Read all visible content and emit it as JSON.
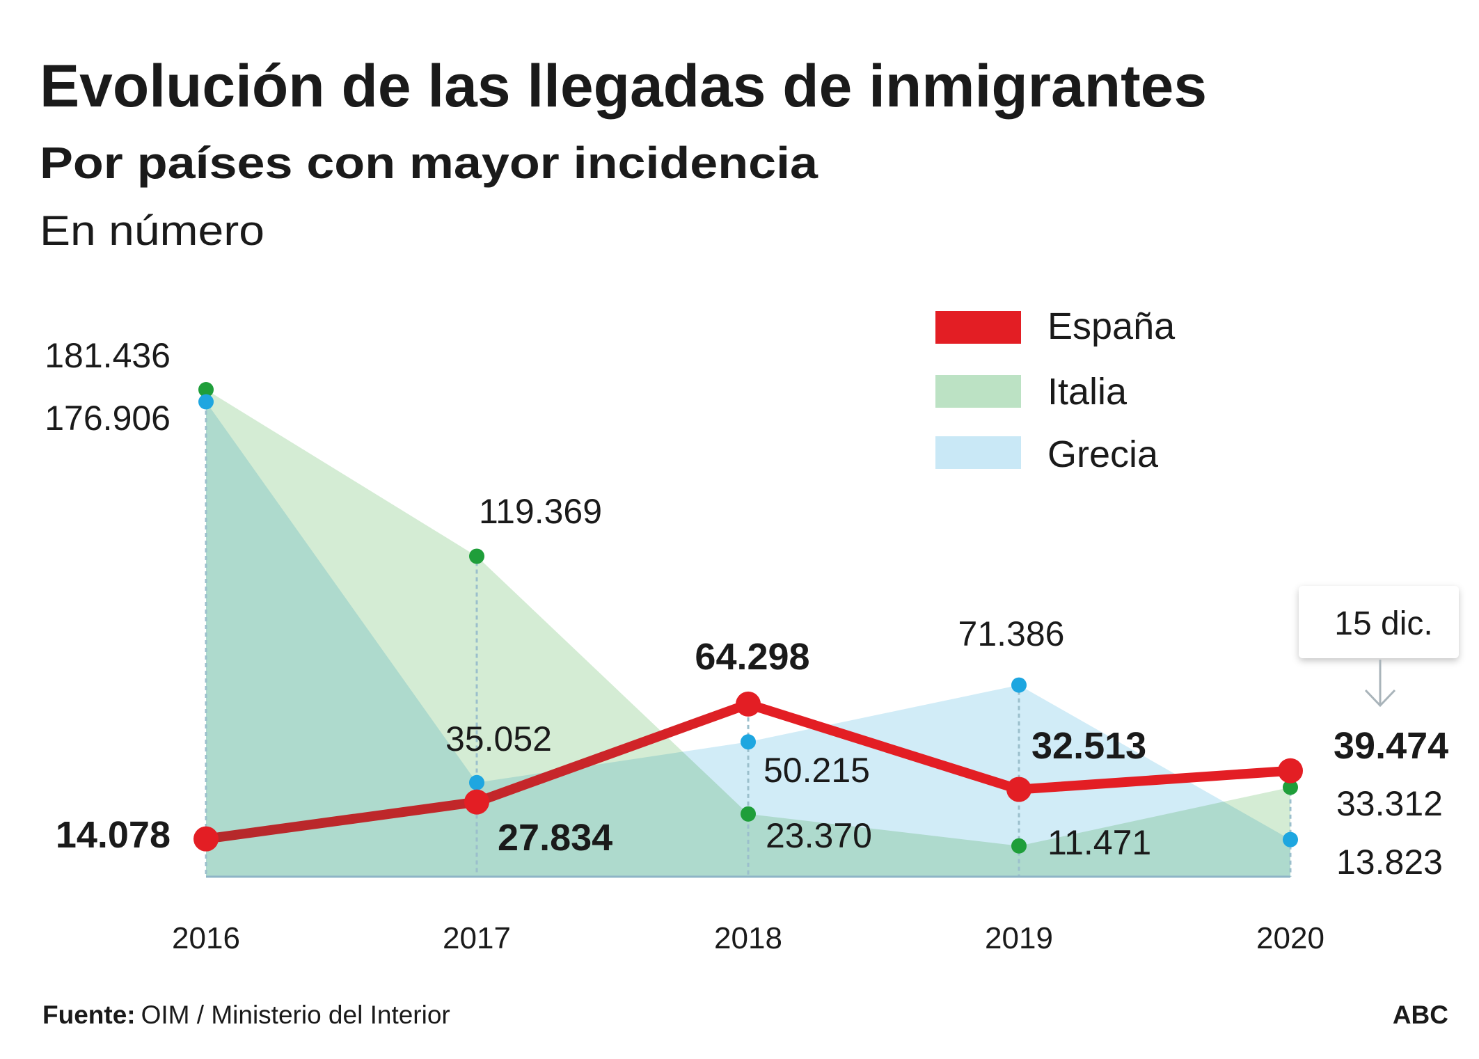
{
  "header": {
    "title": "Evolución de las llegadas de inmigrantes",
    "subtitle": "Por países con mayor incidencia",
    "unit": "En número"
  },
  "footer": {
    "source_label": "Fuente:",
    "source_text": "OIM / Ministerio del Interior",
    "brand": "ABC"
  },
  "annotation": {
    "text": "15 dic.",
    "icon": "arrow-down-icon"
  },
  "chart_data": {
    "type": "area",
    "title": "Evolución de las llegadas de inmigrantes",
    "subtitle": "Por países con mayor incidencia",
    "ylabel": "En número",
    "categories": [
      "2016",
      "2017",
      "2018",
      "2019",
      "2020"
    ],
    "ylim": [
      0,
      181436
    ],
    "grid": false,
    "legend_position": "top-right",
    "series": [
      {
        "name": "España",
        "render": "line",
        "color": "#e31e24",
        "values": [
          14078,
          27834,
          64298,
          32513,
          39474
        ],
        "labels": [
          "14.078",
          "27.834",
          "64.298",
          "32.513",
          "39.474"
        ]
      },
      {
        "name": "Italia",
        "render": "area",
        "color": "#d4ecd4",
        "dot_color": "#1f9e3a",
        "values": [
          181436,
          119369,
          23370,
          11471,
          33312
        ],
        "labels": [
          "181.436",
          "119.369",
          "23.370",
          "11.471",
          "33.312"
        ]
      },
      {
        "name": "Grecia",
        "render": "area",
        "color": "#d1ecf7",
        "dot_color": "#1ea6e0",
        "values": [
          176906,
          35052,
          50215,
          71386,
          13823
        ],
        "labels": [
          "176.906",
          "35.052",
          "50.215",
          "71.386",
          "13.823"
        ]
      }
    ],
    "annotations": [
      {
        "category": "2020",
        "text": "15 dic."
      }
    ]
  }
}
